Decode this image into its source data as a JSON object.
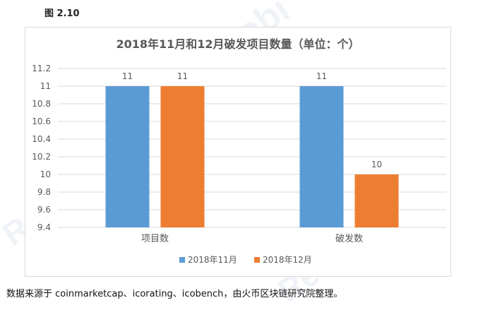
{
  "figure_label": "图 2.10",
  "source_note": "数据来源于 coinmarketcap、icorating、icobench，由火币区块链研究院整理。",
  "watermark": {
    "brand": "Huobi",
    "research": "Research"
  },
  "colors": {
    "series1": "#5b9bd5",
    "series2": "#ed7d31",
    "grid": "#d9d9d9",
    "text": "#595959"
  },
  "chart_data": {
    "type": "bar",
    "title": "2018年11月和12月破发项目数量（单位：个）",
    "categories": [
      "项目数",
      "破发数"
    ],
    "series": [
      {
        "name": "2018年11月",
        "values": [
          11,
          11
        ],
        "color": "#5b9bd5"
      },
      {
        "name": "2018年12月",
        "values": [
          11,
          10
        ],
        "color": "#ed7d31"
      }
    ],
    "ylim": [
      9.4,
      11.2
    ],
    "yticks": [
      "9.4",
      "9.6",
      "9.8",
      "10",
      "10.2",
      "10.4",
      "10.6",
      "10.8",
      "11",
      "11.2"
    ],
    "xlabel": "",
    "ylabel": "",
    "grid": true,
    "legend": "bottom"
  }
}
